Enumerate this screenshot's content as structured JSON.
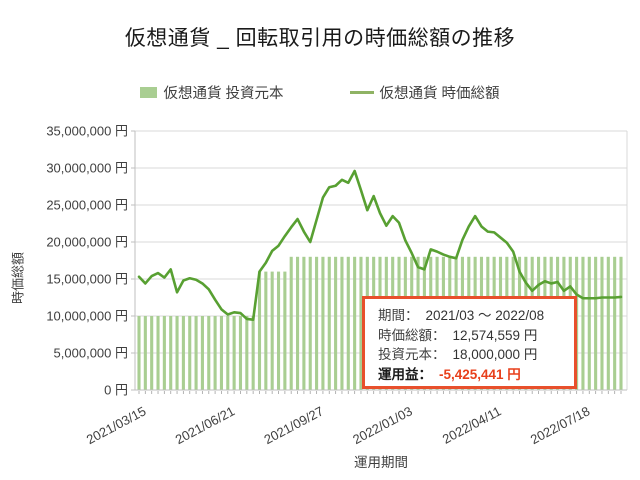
{
  "title": "仮想通貨 _ 回転取引用の時価総額の推移",
  "legend": {
    "items": [
      {
        "label": "仮想通貨 投資元本",
        "marker": "square"
      },
      {
        "label": "仮想通貨 時価総額",
        "marker": "line"
      }
    ]
  },
  "y_axis": {
    "title": "時価総額",
    "tick_labels": [
      "35,000,000 円",
      "30,000,000 円",
      "25,000,000 円",
      "20,000,000 円",
      "15,000,000 円",
      "10,000,000 円",
      "5,000,000 円",
      "0 円"
    ]
  },
  "x_axis": {
    "title": "運用期間",
    "tick_labels": [
      "2021/03/15",
      "2021/06/21",
      "2021/09/27",
      "2022/01/03",
      "2022/04/11",
      "2022/07/18"
    ],
    "tick_weeks": [
      0,
      14,
      28,
      42,
      56,
      70
    ]
  },
  "annotation": {
    "rows": [
      {
        "label": "期間：",
        "value": "2021/03 ～ 2022/08"
      },
      {
        "label": "時価総額：",
        "value": "12,574,559 円"
      },
      {
        "label": "投資元本：",
        "value": "18,000,000 円"
      },
      {
        "label": "運用益：",
        "value": "-5,425,441 円"
      }
    ]
  },
  "colors": {
    "bar": "#a9ce92",
    "line": "#58a032",
    "legend_line": "#8fb364",
    "grid": "#d9d9d9",
    "axis": "#bfbfbf",
    "tick": "#ababab",
    "text": "#3f3f3f",
    "annotation_border": "#e8502c",
    "negative_value": "#e8401c"
  },
  "chart_data": {
    "type": "bar",
    "subtype": "combo-bar-and-line",
    "title": "仮想通貨 _ 回転取引用の時価総額の推移",
    "xlabel": "運用期間",
    "ylabel": "時価総額",
    "unit": "million JPY",
    "x_description": "weekly points from 2021/03/15 to 2022/08/29 (77 weeks)",
    "x_tick_labels": [
      "2021/03/15",
      "2021/06/21",
      "2021/09/27",
      "2022/01/03",
      "2022/04/11",
      "2022/07/18"
    ],
    "ylim": [
      0,
      35
    ],
    "grid": true,
    "legend_position": "top",
    "series": [
      {
        "name": "仮想通貨 投資元本",
        "type": "bar",
        "values": [
          10,
          10,
          10,
          10,
          10,
          10,
          10,
          10,
          10,
          10,
          10,
          10,
          10,
          10,
          10,
          10,
          10,
          10,
          10,
          16,
          16,
          16,
          16,
          16,
          18,
          18,
          18,
          18,
          18,
          18,
          18,
          18,
          18,
          18,
          18,
          18,
          18,
          18,
          18,
          18,
          18,
          18,
          18,
          18,
          18,
          18,
          18,
          18,
          18,
          18,
          18,
          18,
          18,
          18,
          18,
          18,
          18,
          18,
          18,
          18,
          18,
          18,
          18,
          18,
          18,
          18,
          18,
          18,
          18,
          18,
          18,
          18,
          18,
          18,
          18,
          18,
          18
        ]
      },
      {
        "name": "仮想通貨 時価総額",
        "type": "line",
        "values": [
          15.3,
          14.4,
          15.4,
          15.8,
          15.2,
          16.3,
          13.2,
          14.8,
          15.1,
          14.9,
          14.4,
          13.6,
          12.2,
          10.9,
          10.2,
          10.5,
          10.4,
          9.6,
          9.5,
          16.0,
          17.2,
          18.8,
          19.5,
          20.8,
          22.0,
          23.1,
          21.4,
          20.0,
          23.0,
          26.0,
          27.4,
          27.6,
          28.4,
          28.0,
          29.6,
          27.0,
          24.3,
          26.2,
          23.9,
          22.2,
          23.5,
          22.6,
          20.2,
          18.5,
          16.6,
          16.3,
          19.0,
          18.7,
          18.3,
          18.0,
          17.8,
          20.3,
          22.1,
          23.5,
          22.1,
          21.4,
          21.3,
          20.6,
          19.9,
          18.7,
          16.0,
          14.5,
          13.4,
          14.2,
          14.7,
          14.4,
          14.6,
          13.4,
          14.0,
          12.9,
          12.4,
          12.4,
          12.4,
          12.5,
          12.5,
          12.5,
          12.57
        ]
      }
    ],
    "final_values": {
      "market_cap_jpy": "12,574,559 円",
      "principal_jpy": "18,000,000 円",
      "profit_jpy": "-5,425,441 円"
    }
  }
}
